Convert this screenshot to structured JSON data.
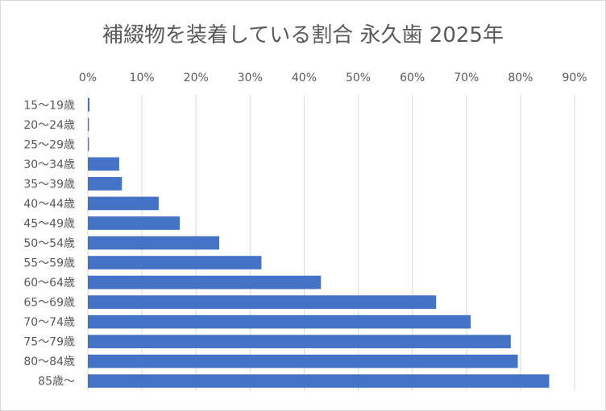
{
  "chart_data": {
    "type": "bar",
    "orientation": "horizontal",
    "title": "補綴物を装着している割合 永久歯 2025年",
    "xlabel": "",
    "ylabel": "",
    "xlim": [
      0,
      90
    ],
    "x_ticks": [
      "0%",
      "10%",
      "20%",
      "30%",
      "40%",
      "50%",
      "60%",
      "70%",
      "80%",
      "90%"
    ],
    "x_axis_position": "top",
    "grid": true,
    "legend": "none",
    "bar_color": "#4472c4",
    "categories": [
      "15〜19歳",
      "20〜24歳",
      "25〜29歳",
      "30〜34歳",
      "35〜39歳",
      "40〜44歳",
      "45〜49歳",
      "50〜54歳",
      "55〜59歳",
      "60〜64歳",
      "65〜69歳",
      "70〜74歳",
      "75〜79歳",
      "80〜84歳",
      "85歳〜"
    ],
    "values": [
      0.3,
      0.2,
      0.2,
      5.8,
      6.3,
      13.1,
      17.0,
      24.3,
      32.1,
      43.1,
      64.4,
      70.8,
      78.2,
      79.5,
      85.3
    ]
  }
}
